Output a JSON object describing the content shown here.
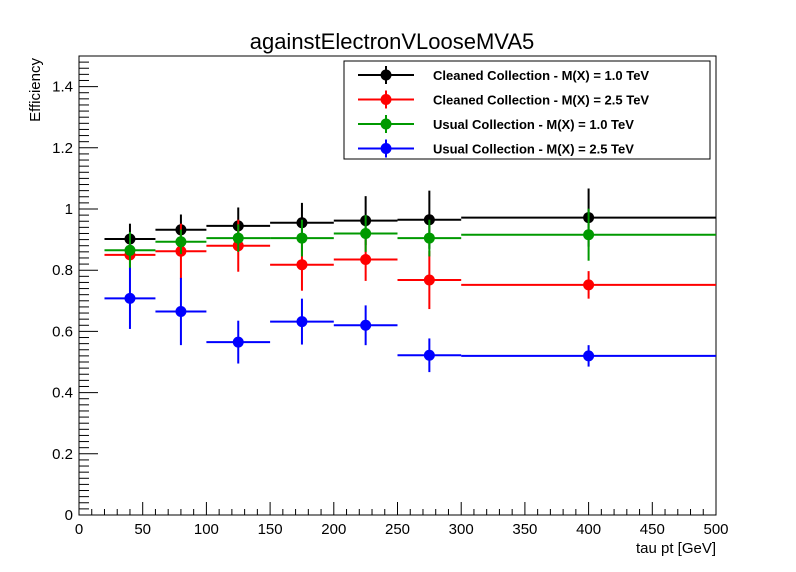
{
  "chart_data": {
    "type": "scatter",
    "title": "againstElectronVLooseMVA5",
    "xlabel": "tau pt [GeV]",
    "ylabel": "Efficiency",
    "xlim": [
      0,
      500
    ],
    "ylim": [
      0,
      1.5
    ],
    "x_ticks": [
      "0",
      "50",
      "100",
      "150",
      "200",
      "250",
      "300",
      "350",
      "400",
      "450",
      "500"
    ],
    "y_ticks": [
      "0",
      "0.2",
      "0.4",
      "0.6",
      "0.8",
      "1",
      "1.2",
      "1.4"
    ],
    "grid": false,
    "legend_position": "top-right",
    "bins": [
      [
        20,
        60
      ],
      [
        60,
        100
      ],
      [
        100,
        150
      ],
      [
        150,
        200
      ],
      [
        200,
        250
      ],
      [
        250,
        300
      ],
      [
        300,
        500
      ]
    ],
    "x": [
      40,
      80,
      125,
      175,
      225,
      275,
      400
    ],
    "series": [
      {
        "name": "Cleaned Collection - M(X) = 1.0 TeV",
        "color": "#000000",
        "values": [
          0.902,
          0.932,
          0.945,
          0.955,
          0.962,
          0.965,
          0.972
        ],
        "errors": [
          0.05,
          0.05,
          0.06,
          0.065,
          0.08,
          0.095,
          0.095
        ]
      },
      {
        "name": "Cleaned Collection - M(X) = 2.5 TeV",
        "color": "#ff0000",
        "values": [
          0.85,
          0.862,
          0.88,
          0.818,
          0.835,
          0.768,
          0.752
        ],
        "errors": [
          0.04,
          0.09,
          0.085,
          0.085,
          0.07,
          0.095,
          0.045
        ]
      },
      {
        "name": "Usual Collection - M(X) = 1.0 TeV",
        "color": "#009900",
        "values": [
          0.865,
          0.893,
          0.905,
          0.905,
          0.92,
          0.905,
          0.916
        ],
        "errors": [
          0.06,
          0.04,
          0.045,
          0.06,
          0.06,
          0.06,
          0.085
        ]
      },
      {
        "name": "Usual Collection - M(X) = 2.5 TeV",
        "color": "#0000ff",
        "values": [
          0.708,
          0.665,
          0.565,
          0.632,
          0.62,
          0.522,
          0.52
        ],
        "errors": [
          0.1,
          0.11,
          0.07,
          0.075,
          0.065,
          0.055,
          0.035
        ]
      }
    ]
  }
}
